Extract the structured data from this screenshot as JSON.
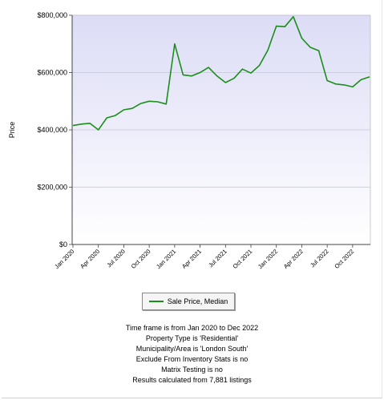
{
  "chart_data": {
    "type": "line",
    "ylabel": "Price",
    "xlabel": "",
    "ylim": [
      0,
      800000
    ],
    "y_ticks": [
      "$0",
      "$200,000",
      "$400,000",
      "$600,000",
      "$800,000"
    ],
    "y_tick_values": [
      0,
      200000,
      400000,
      600000,
      800000
    ],
    "x_tick_labels": [
      "Jan 2020",
      "Apr 2020",
      "Jul 2020",
      "Oct 2020",
      "Jan 2021",
      "Apr 2021",
      "Jul 2021",
      "Oct 2021",
      "Jan 2022",
      "Apr 2022",
      "Jul 2022",
      "Oct 2022"
    ],
    "x": [
      "Jan 2020",
      "Feb 2020",
      "Mar 2020",
      "Apr 2020",
      "May 2020",
      "Jun 2020",
      "Jul 2020",
      "Aug 2020",
      "Sep 2020",
      "Oct 2020",
      "Nov 2020",
      "Dec 2020",
      "Jan 2021",
      "Feb 2021",
      "Mar 2021",
      "Apr 2021",
      "May 2021",
      "Jun 2021",
      "Jul 2021",
      "Aug 2021",
      "Sep 2021",
      "Oct 2021",
      "Nov 2021",
      "Dec 2021",
      "Jan 2022",
      "Feb 2022",
      "Mar 2022",
      "Apr 2022",
      "May 2022",
      "Jun 2022",
      "Jul 2022",
      "Aug 2022",
      "Sep 2022",
      "Oct 2022",
      "Nov 2022",
      "Dec 2022"
    ],
    "series": [
      {
        "name": "Sale Price, Median",
        "color": "#1a8f1a",
        "values": [
          415000,
          420000,
          423000,
          400000,
          442000,
          450000,
          470000,
          475000,
          492000,
          500000,
          498000,
          490000,
          700000,
          592000,
          588000,
          600000,
          618000,
          588000,
          565000,
          580000,
          612000,
          598000,
          625000,
          678000,
          762000,
          760000,
          795000,
          720000,
          688000,
          676000,
          572000,
          560000,
          557000,
          550000,
          575000,
          585000
        ]
      }
    ],
    "grid": true,
    "legend_position": "bottom"
  },
  "legend": {
    "label": "Sale Price, Median"
  },
  "notes": [
    "Time frame is from Jan 2020 to Dec 2022",
    "Property Type is 'Residential'",
    "Municipality/Area is 'London South'",
    "Exclude From Inventory Stats is no",
    "Matrix Testing is no",
    "Results calculated from 7,881 listings"
  ],
  "colors": {
    "plot_top": "#dcdcf6",
    "plot_bottom": "#ffffff",
    "grid": "#c4c4d8",
    "line": "#1a8f1a"
  }
}
